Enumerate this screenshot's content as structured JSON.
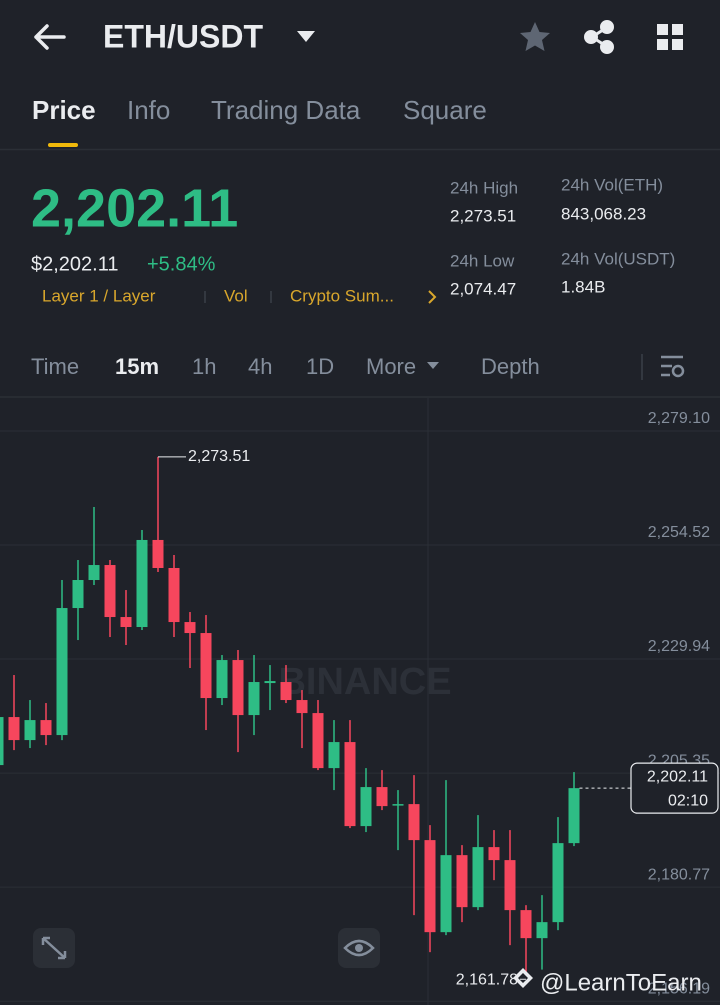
{
  "header": {
    "pair": "ETH/USDT"
  },
  "tabs": [
    "Price",
    "Info",
    "Trading Data",
    "Square"
  ],
  "price": {
    "last": "2,202.11",
    "usd": "$2,202.11",
    "change": "+5.84%"
  },
  "tags": [
    "Layer 1 / Layer",
    "Vol",
    "Crypto Sum..."
  ],
  "stats": [
    {
      "label": "24h High",
      "value": "2,273.51"
    },
    {
      "label": "24h Low",
      "value": "2,074.47"
    },
    {
      "label": "24h Vol(ETH)",
      "value": "843,068.23"
    },
    {
      "label": "24h Vol(USDT)",
      "value": "1.84B"
    }
  ],
  "intervals": [
    "Time",
    "15m",
    "1h",
    "4h",
    "1D",
    "More",
    "Depth"
  ],
  "chart_data": {
    "type": "candlestick",
    "watermark": "BINANCE",
    "up_color": "#2ebd85",
    "down_color": "#f6465d",
    "open": [
      2207.08,
      2217.43,
      2212.47,
      2216.78,
      2213.55,
      2240.93,
      2246.97,
      2250.2,
      2238.99,
      2236.84,
      2255.6,
      2249.56,
      2237.91,
      2235.54,
      2221.53,
      2229.72,
      2217.86,
      2224.76,
      2224.98,
      2221.1,
      2218.29,
      2206.43,
      2212.04,
      2193.93,
      2202.34,
      2198.46,
      2198.67,
      2190.91,
      2171.07,
      2187.67,
      2176.46,
      2189.4,
      2186.6,
      2175.82,
      2169.78,
      2173.23,
      2190.26
    ],
    "high": [
      2221.1,
      2226.49,
      2221.1,
      2220.45,
      2246.97,
      2251.28,
      2262.71,
      2251.28,
      2244.81,
      2257.75,
      2273.51,
      2252.36,
      2240.07,
      2239.42,
      2230.8,
      2231.88,
      2230.8,
      2228.64,
      2228.64,
      2223.25,
      2221.1,
      2216.78,
      2216.78,
      2206.43,
      2206.0,
      2201.69,
      2204.92,
      2194.14,
      2203.85,
      2189.83,
      2196.3,
      2193.07,
      2193.07,
      2176.89,
      2179.05,
      2195.87,
      2205.57
    ],
    "low": [
      2206.0,
      2210.31,
      2210.75,
      2211.39,
      2212.47,
      2234.03,
      2245.89,
      2234.68,
      2232.96,
      2236.19,
      2248.7,
      2234.68,
      2228.0,
      2214.63,
      2220.02,
      2209.88,
      2213.55,
      2218.94,
      2220.45,
      2210.75,
      2206.0,
      2201.69,
      2193.5,
      2192.64,
      2197.38,
      2188.75,
      2174.74,
      2166.76,
      2170.43,
      2173.23,
      2175.82,
      2182.28,
      2168.27,
      2161.78,
      2163.0,
      2171.5,
      2189.62
    ],
    "close": [
      2217.43,
      2212.47,
      2216.78,
      2213.55,
      2240.93,
      2246.97,
      2250.2,
      2238.99,
      2236.84,
      2255.6,
      2249.56,
      2237.91,
      2235.54,
      2221.53,
      2229.72,
      2217.86,
      2224.98,
      2225.19,
      2221.1,
      2218.29,
      2206.43,
      2212.04,
      2193.93,
      2202.34,
      2198.24,
      2198.67,
      2190.91,
      2171.07,
      2187.67,
      2176.46,
      2189.4,
      2186.6,
      2175.82,
      2169.78,
      2173.23,
      2190.26,
      2202.11
    ],
    "ylim": [
      2155.8,
      2286.2
    ],
    "yticks": [
      {
        "value": 2279.1,
        "label": "2,279.10"
      },
      {
        "value": 2254.52,
        "label": "2,254.52"
      },
      {
        "value": 2229.94,
        "label": "2,229.94"
      },
      {
        "value": 2205.35,
        "label": "2,205.35"
      },
      {
        "value": 2180.77,
        "label": "2,180.77"
      },
      {
        "value": 2156.19,
        "label": "2,156.19"
      }
    ],
    "grid": true,
    "high_label": {
      "value": 2273.51,
      "label": "2,273.51"
    },
    "low_label": {
      "value": 2161.78,
      "label": "2,161.78"
    },
    "last_price": {
      "value": 2202.11,
      "label": "2,202.11"
    },
    "countdown": "02:10"
  },
  "credit": "@LearnToEarn"
}
